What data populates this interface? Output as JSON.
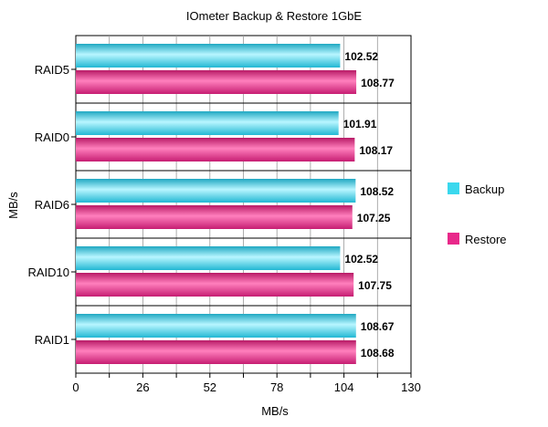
{
  "chart_data": {
    "type": "bar",
    "orientation": "horizontal",
    "title": "IOmeter Backup & Restore 1GbE",
    "xlabel": "MB/s",
    "ylabel": "MB/s",
    "categories": [
      "RAID5",
      "RAID0",
      "RAID6",
      "RAID10",
      "RAID1"
    ],
    "series": [
      {
        "name": "Backup",
        "color": "#3ad8ee",
        "values": [
          102.52,
          101.91,
          108.52,
          102.52,
          108.67
        ]
      },
      {
        "name": "Restore",
        "color": "#e8288a",
        "values": [
          108.77,
          108.17,
          107.25,
          107.75,
          108.68
        ]
      }
    ],
    "xlim": [
      0,
      130
    ],
    "xticks": [
      0,
      26,
      52,
      78,
      104,
      130
    ],
    "grid": true,
    "legend_position": "right"
  }
}
